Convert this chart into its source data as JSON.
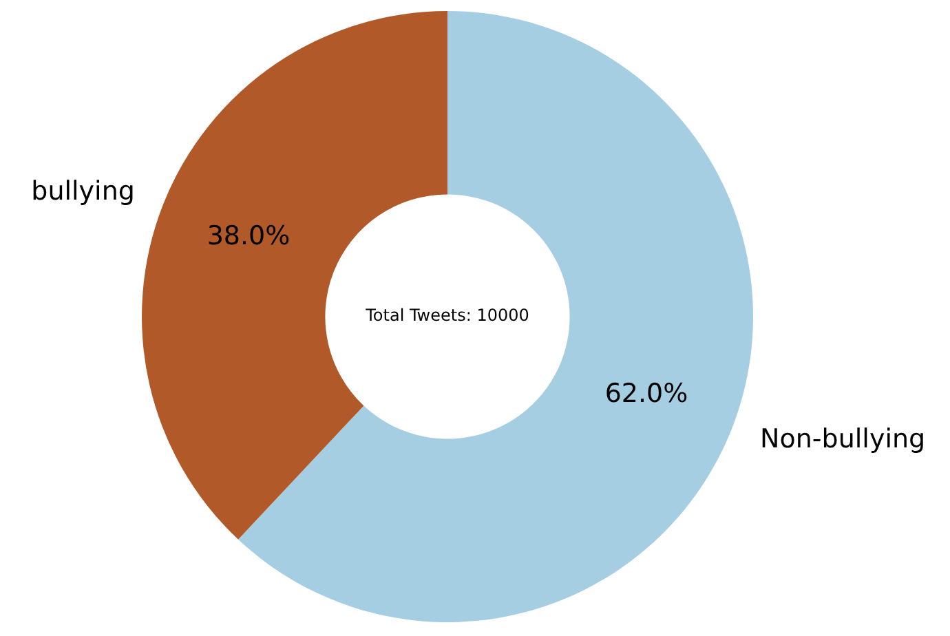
{
  "chart_data": {
    "type": "donut",
    "categories": [
      "Non-bullying",
      "bullying"
    ],
    "values": [
      62,
      38
    ],
    "colors": [
      "#a6cee3",
      "#b15928"
    ],
    "value_labels": [
      "62.0%",
      "38.0%"
    ],
    "annotations": [
      "Total Tweets: 10000"
    ]
  }
}
